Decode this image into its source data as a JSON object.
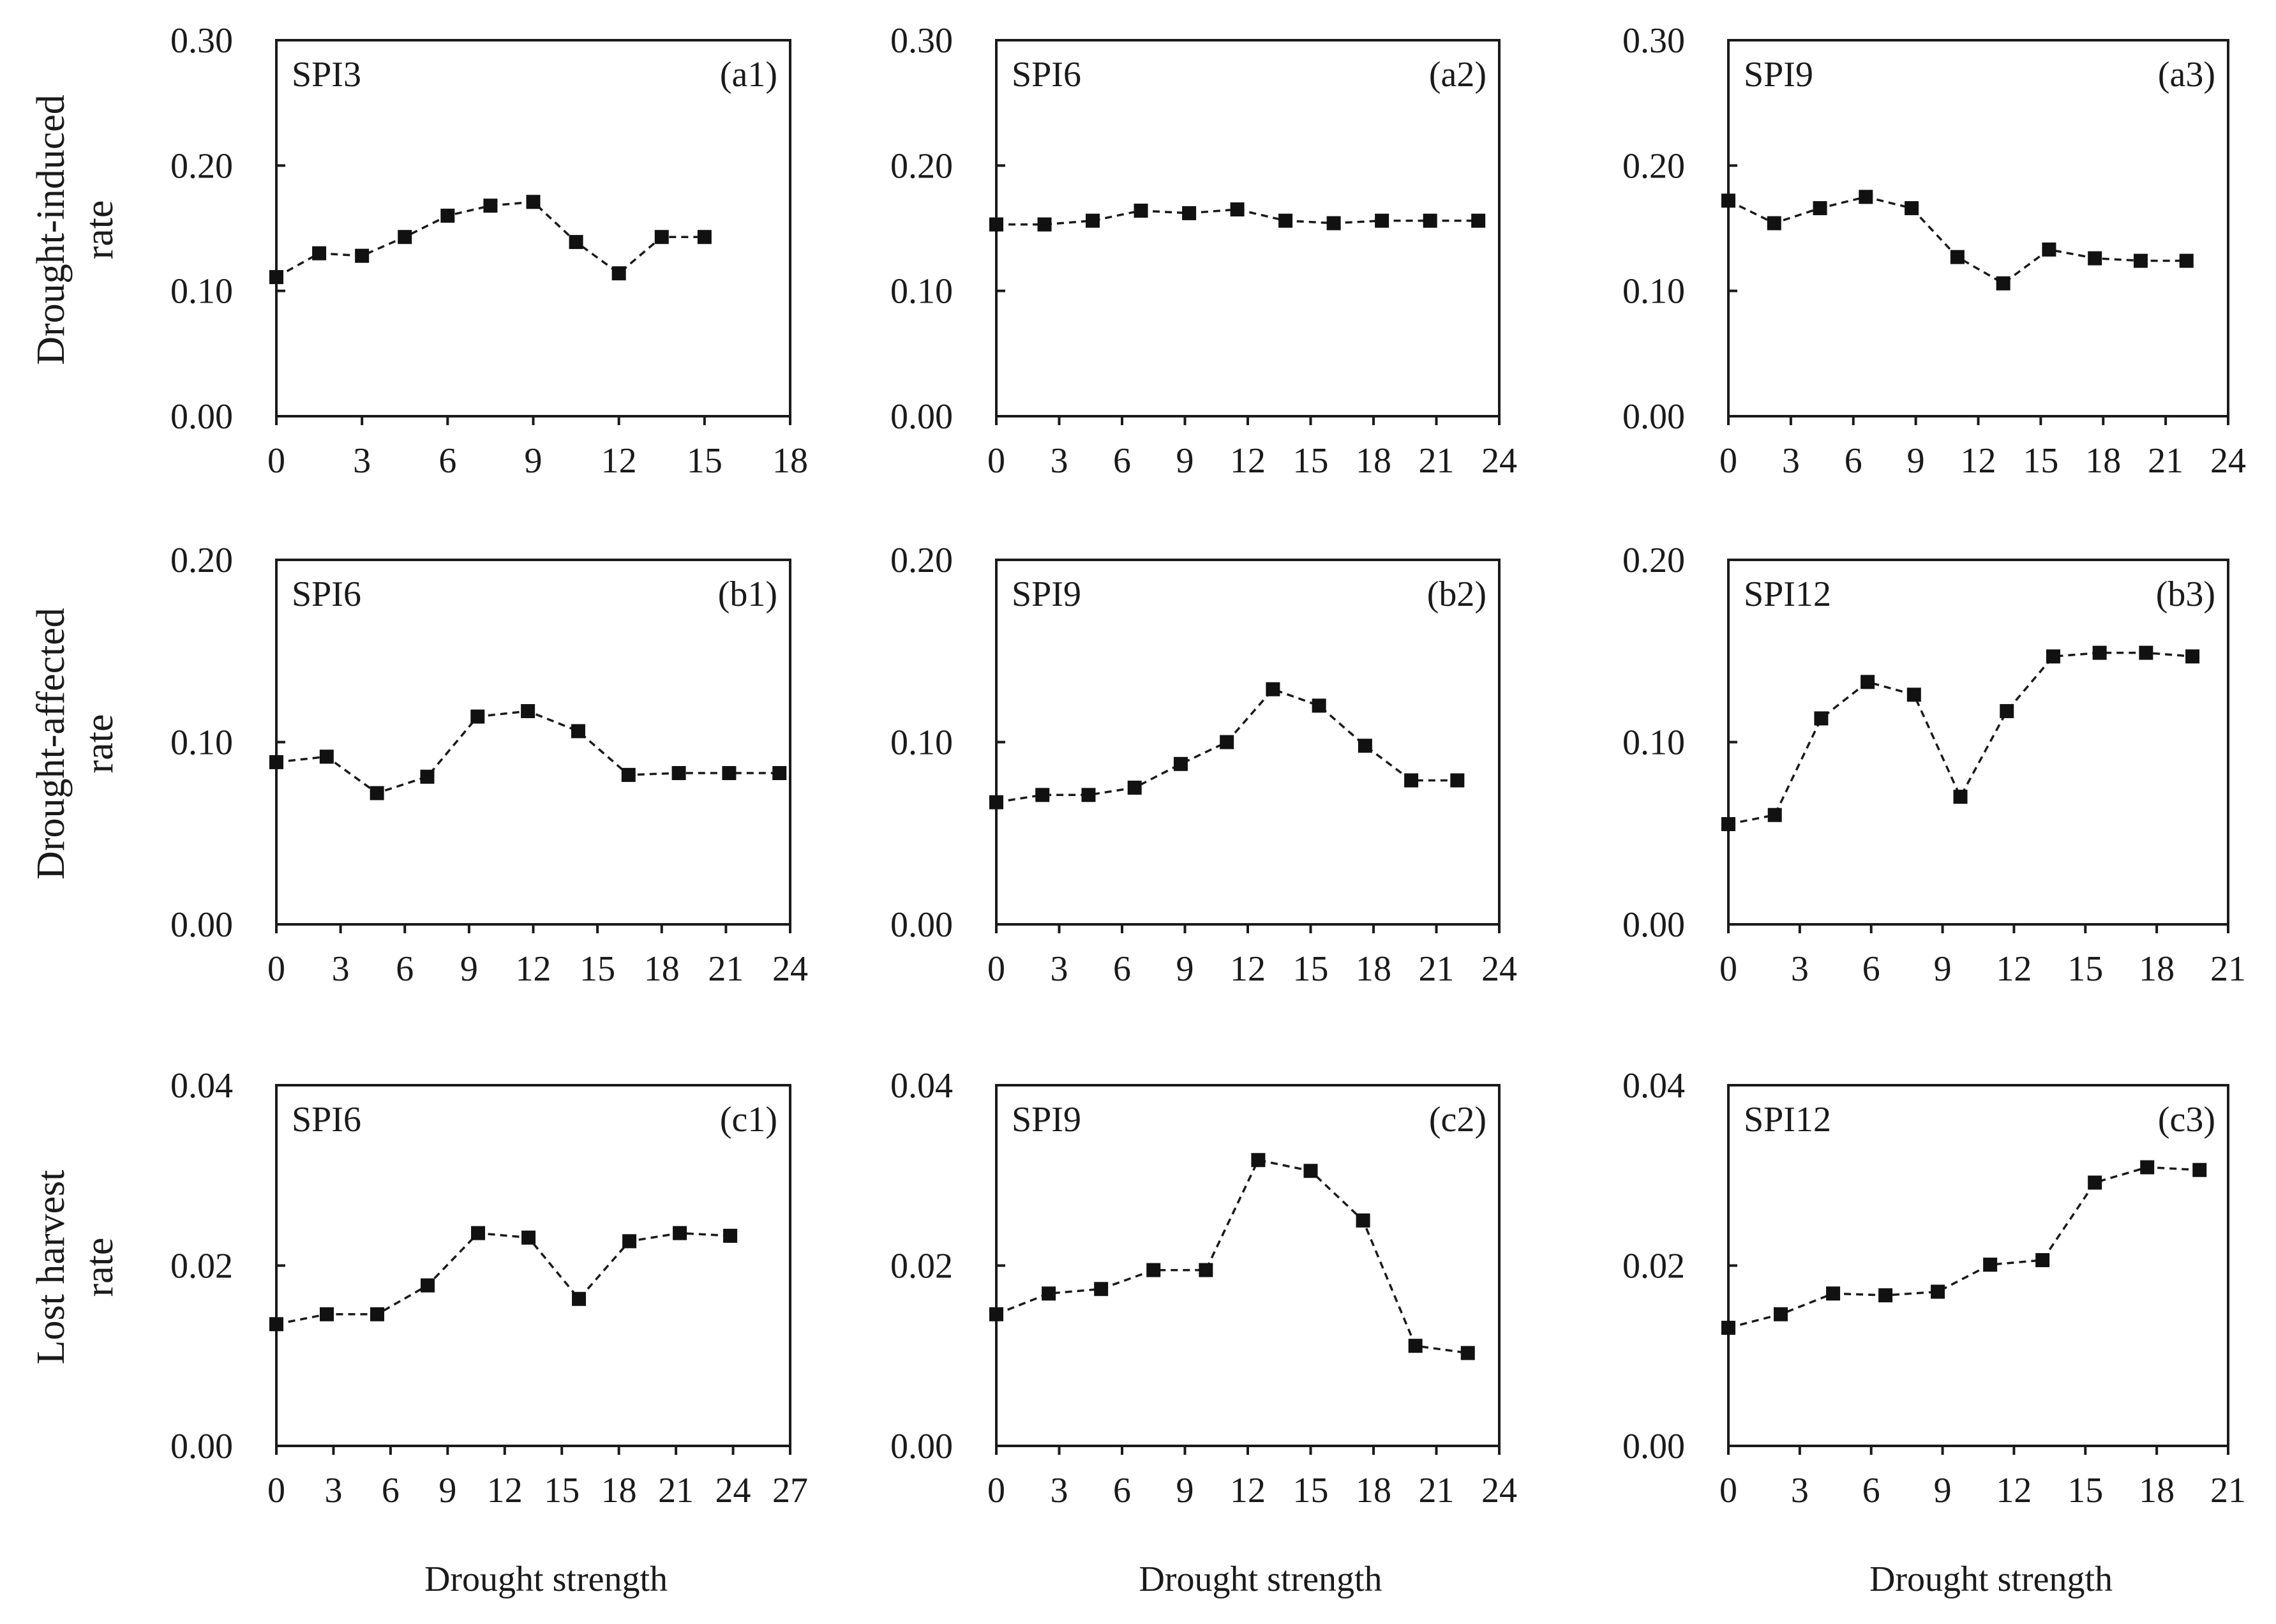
{
  "figure": {
    "row_labels": [
      [
        "Drought-induced",
        "rate"
      ],
      [
        "Drought-affected",
        "rate"
      ],
      [
        "Lost harvest",
        "rate"
      ]
    ],
    "xlabel": "Drought strength"
  },
  "chart_data": [
    {
      "type": "line",
      "row": 0,
      "col": 0,
      "index_label": "SPI3",
      "panel_label": "(a1)",
      "x": [
        0,
        1.5,
        3,
        4.5,
        6,
        7.5,
        9,
        10.5,
        12,
        13.5,
        15
      ],
      "y": [
        0.111,
        0.13,
        0.128,
        0.143,
        0.16,
        0.168,
        0.171,
        0.139,
        0.114,
        0.143,
        0.143
      ],
      "xlim": [
        0,
        18
      ],
      "xticks": [
        0,
        3,
        6,
        9,
        12,
        15,
        18
      ],
      "xticklabels": [
        "0",
        "3",
        "6",
        "9",
        "12",
        "15",
        "18"
      ],
      "ylim": [
        0,
        0.3
      ],
      "yticks": [
        0,
        0.1,
        0.2,
        0.3
      ],
      "yticklabels": [
        "0.00",
        "0.10",
        "0.20",
        "0.30"
      ],
      "xlabel": "",
      "ylabel": "Drought-induced rate"
    },
    {
      "type": "line",
      "row": 0,
      "col": 1,
      "index_label": "SPI6",
      "panel_label": "(a2)",
      "x": [
        0,
        2.3,
        4.6,
        6.9,
        9.2,
        11.5,
        13.8,
        16.1,
        18.4,
        20.7,
        23
      ],
      "y": [
        0.153,
        0.153,
        0.156,
        0.164,
        0.162,
        0.165,
        0.156,
        0.154,
        0.156,
        0.156,
        0.156
      ],
      "xlim": [
        0,
        24
      ],
      "xticks": [
        0,
        3,
        6,
        9,
        12,
        15,
        18,
        21,
        24
      ],
      "xticklabels": [
        "0",
        "3",
        "6",
        "9",
        "12",
        "15",
        "18",
        "21",
        "24"
      ],
      "ylim": [
        0,
        0.3
      ],
      "yticks": [
        0,
        0.1,
        0.2,
        0.3
      ],
      "yticklabels": [
        "0.00",
        "0.10",
        "0.20",
        "0.30"
      ],
      "xlabel": "",
      "ylabel": ""
    },
    {
      "type": "line",
      "row": 0,
      "col": 2,
      "index_label": "SPI9",
      "panel_label": "(a3)",
      "x": [
        0,
        2.2,
        4.4,
        6.6,
        8.8,
        11,
        13.2,
        15.4,
        17.6,
        19.8,
        22
      ],
      "y": [
        0.172,
        0.154,
        0.166,
        0.175,
        0.166,
        0.127,
        0.106,
        0.133,
        0.126,
        0.124,
        0.124
      ],
      "xlim": [
        0,
        24
      ],
      "xticks": [
        0,
        3,
        6,
        9,
        12,
        15,
        18,
        21,
        24
      ],
      "xticklabels": [
        "0",
        "3",
        "6",
        "9",
        "12",
        "15",
        "18",
        "21",
        "24"
      ],
      "ylim": [
        0,
        0.3
      ],
      "yticks": [
        0,
        0.1,
        0.2,
        0.3
      ],
      "yticklabels": [
        "0.00",
        "0.10",
        "0.20",
        "0.30"
      ],
      "xlabel": "",
      "ylabel": ""
    },
    {
      "type": "line",
      "row": 1,
      "col": 0,
      "index_label": "SPI6",
      "panel_label": "(b1)",
      "x": [
        0,
        2.35,
        4.7,
        7.05,
        9.4,
        11.75,
        14.1,
        16.45,
        18.8,
        21.15,
        23.5
      ],
      "y": [
        0.089,
        0.092,
        0.072,
        0.081,
        0.114,
        0.117,
        0.106,
        0.082,
        0.083,
        0.083,
        0.083
      ],
      "xlim": [
        0,
        24
      ],
      "xticks": [
        0,
        3,
        6,
        9,
        12,
        15,
        18,
        21,
        24
      ],
      "xticklabels": [
        "0",
        "3",
        "6",
        "9",
        "12",
        "15",
        "18",
        "21",
        "24"
      ],
      "ylim": [
        0,
        0.2
      ],
      "yticks": [
        0,
        0.1,
        0.2
      ],
      "yticklabels": [
        "0.00",
        "0.10",
        "0.20"
      ],
      "xlabel": "",
      "ylabel": "Drought-affected rate"
    },
    {
      "type": "line",
      "row": 1,
      "col": 1,
      "index_label": "SPI9",
      "panel_label": "(b2)",
      "x": [
        0,
        2.2,
        4.4,
        6.6,
        8.8,
        11,
        13.2,
        15.4,
        17.6,
        19.8,
        22
      ],
      "y": [
        0.067,
        0.071,
        0.071,
        0.075,
        0.088,
        0.1,
        0.129,
        0.12,
        0.098,
        0.079,
        0.079
      ],
      "xlim": [
        0,
        24
      ],
      "xticks": [
        0,
        3,
        6,
        9,
        12,
        15,
        18,
        21,
        24
      ],
      "xticklabels": [
        "0",
        "3",
        "6",
        "9",
        "12",
        "15",
        "18",
        "21",
        "24"
      ],
      "ylim": [
        0,
        0.2
      ],
      "yticks": [
        0,
        0.1,
        0.2
      ],
      "yticklabels": [
        "0.00",
        "0.10",
        "0.20"
      ],
      "xlabel": "",
      "ylabel": ""
    },
    {
      "type": "line",
      "row": 1,
      "col": 2,
      "index_label": "SPI12",
      "panel_label": "(b3)",
      "x": [
        0,
        1.95,
        3.9,
        5.85,
        7.8,
        9.75,
        11.7,
        13.65,
        15.6,
        17.55,
        19.5
      ],
      "y": [
        0.055,
        0.06,
        0.113,
        0.133,
        0.126,
        0.07,
        0.117,
        0.147,
        0.149,
        0.149,
        0.147
      ],
      "xlim": [
        0,
        21
      ],
      "xticks": [
        0,
        3,
        6,
        9,
        12,
        15,
        18,
        21
      ],
      "xticklabels": [
        "0",
        "3",
        "6",
        "9",
        "12",
        "15",
        "18",
        "21"
      ],
      "ylim": [
        0,
        0.2
      ],
      "yticks": [
        0,
        0.1,
        0.2
      ],
      "yticklabels": [
        "0.00",
        "0.10",
        "0.20"
      ],
      "xlabel": "",
      "ylabel": ""
    },
    {
      "type": "line",
      "row": 2,
      "col": 0,
      "index_label": "SPI6",
      "panel_label": "(c1)",
      "x": [
        0,
        2.65,
        5.3,
        7.95,
        10.6,
        13.25,
        15.9,
        18.55,
        21.2,
        23.85
      ],
      "y": [
        0.0135,
        0.0146,
        0.0146,
        0.0178,
        0.0236,
        0.0231,
        0.0163,
        0.0227,
        0.0236,
        0.0233
      ],
      "xlim": [
        0,
        27
      ],
      "xticks": [
        0,
        3,
        6,
        9,
        12,
        15,
        18,
        21,
        24,
        27
      ],
      "xticklabels": [
        "0",
        "3",
        "6",
        "9",
        "12",
        "15",
        "18",
        "21",
        "24",
        "27"
      ],
      "ylim": [
        0,
        0.04
      ],
      "yticks": [
        0,
        0.02,
        0.04
      ],
      "yticklabels": [
        "0.00",
        "0.02",
        "0.04"
      ],
      "xlabel": "Drought strength",
      "ylabel": "Lost harvest rate"
    },
    {
      "type": "line",
      "row": 2,
      "col": 1,
      "index_label": "SPI9",
      "panel_label": "(c2)",
      "x": [
        0,
        2.5,
        5,
        7.5,
        10,
        12.5,
        15,
        17.5,
        20,
        22.5
      ],
      "y": [
        0.0146,
        0.0169,
        0.0174,
        0.0195,
        0.0195,
        0.0317,
        0.0305,
        0.025,
        0.0111,
        0.0103
      ],
      "xlim": [
        0,
        24
      ],
      "xticks": [
        0,
        3,
        6,
        9,
        12,
        15,
        18,
        21,
        24
      ],
      "xticklabels": [
        "0",
        "3",
        "6",
        "9",
        "12",
        "15",
        "18",
        "21",
        "24"
      ],
      "ylim": [
        0,
        0.04
      ],
      "yticks": [
        0,
        0.02,
        0.04
      ],
      "yticklabels": [
        "0.00",
        "0.02",
        "0.04"
      ],
      "xlabel": "Drought strength",
      "ylabel": ""
    },
    {
      "type": "line",
      "row": 2,
      "col": 2,
      "index_label": "SPI12",
      "panel_label": "(c3)",
      "x": [
        0,
        2.2,
        4.4,
        6.6,
        8.8,
        11,
        13.2,
        15.4,
        17.6,
        19.8
      ],
      "y": [
        0.0131,
        0.0146,
        0.0169,
        0.0167,
        0.0171,
        0.0201,
        0.0206,
        0.0292,
        0.0309,
        0.0306
      ],
      "xlim": [
        0,
        21
      ],
      "xticks": [
        0,
        3,
        6,
        9,
        12,
        15,
        18,
        21
      ],
      "xticklabels": [
        "0",
        "3",
        "6",
        "9",
        "12",
        "15",
        "18",
        "21"
      ],
      "ylim": [
        0,
        0.04
      ],
      "yticks": [
        0,
        0.02,
        0.04
      ],
      "yticklabels": [
        "0.00",
        "0.02",
        "0.04"
      ],
      "xlabel": "Drought strength",
      "ylabel": ""
    }
  ]
}
